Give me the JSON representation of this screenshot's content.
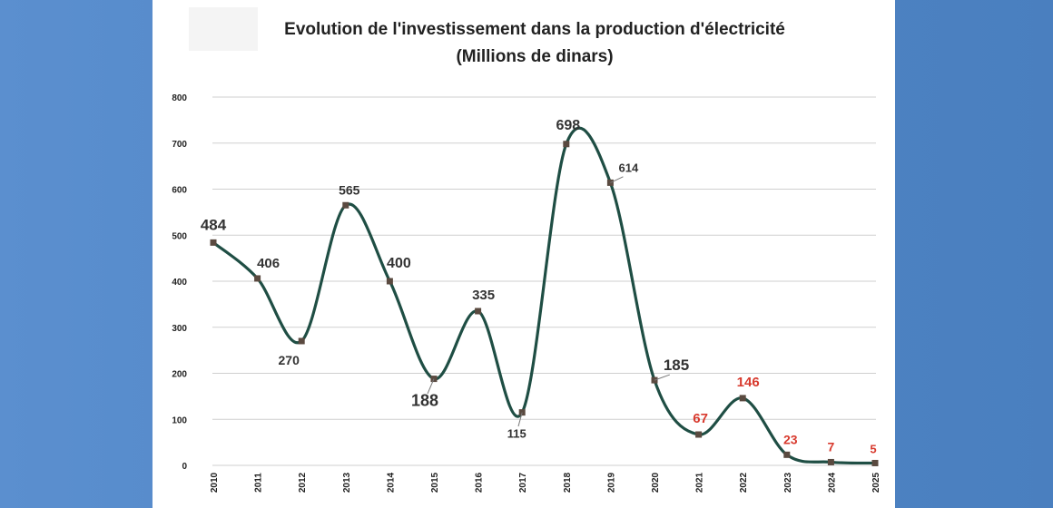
{
  "chart_data": {
    "type": "line",
    "title": "Evolution de l'investissement dans la production d'électricité",
    "subtitle": "(Millions de dinars)",
    "xlabel": "",
    "ylabel": "",
    "ylim": [
      0,
      800
    ],
    "yticks": [
      "0",
      "100",
      "200",
      "300",
      "400",
      "500",
      "600",
      "700",
      "800"
    ],
    "categories": [
      "2010",
      "2011",
      "2012",
      "2013",
      "2014",
      "2015",
      "2016",
      "2017",
      "2018",
      "2019",
      "2020",
      "2021",
      "2022",
      "2023",
      "2024",
      "2025"
    ],
    "values": [
      484,
      406,
      270,
      565,
      400,
      188,
      335,
      115,
      698,
      614,
      185,
      67,
      146,
      23,
      7,
      5
    ],
    "data_labels": [
      "484",
      "406",
      "270",
      "565",
      "400",
      "188",
      "335",
      "115",
      "698",
      "614",
      "185",
      "67",
      "146",
      "23",
      "7",
      "5"
    ],
    "grid": true,
    "line_color": "#1f4e44",
    "label_color_default": "#333333",
    "label_color_highlight": "#d83a2e",
    "highlighted_years": [
      "2021",
      "2022",
      "2023",
      "2024",
      "2025"
    ]
  }
}
